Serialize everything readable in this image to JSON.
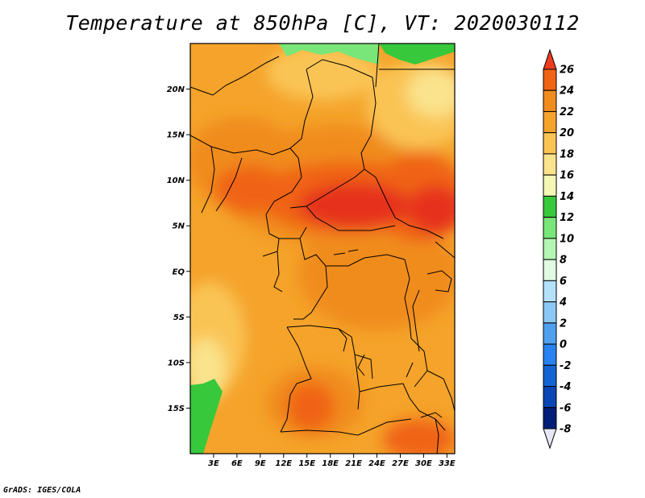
{
  "title": "Temperature at 850hPa [C], VT: 2020030112",
  "footer": "GrADS: IGES/COLA",
  "map": {
    "lon_range": [
      0,
      34
    ],
    "lat_range": [
      -20,
      25
    ],
    "lat_ticks": [
      {
        "value": 20,
        "label": "20N"
      },
      {
        "value": 15,
        "label": "15N"
      },
      {
        "value": 10,
        "label": "10N"
      },
      {
        "value": 5,
        "label": "5N"
      },
      {
        "value": 0,
        "label": "EQ"
      },
      {
        "value": -5,
        "label": "5S"
      },
      {
        "value": -10,
        "label": "10S"
      },
      {
        "value": -15,
        "label": "15S"
      }
    ],
    "lon_ticks": [
      {
        "value": 3,
        "label": "3E"
      },
      {
        "value": 6,
        "label": "6E"
      },
      {
        "value": 9,
        "label": "9E"
      },
      {
        "value": 12,
        "label": "12E"
      },
      {
        "value": 15,
        "label": "15E"
      },
      {
        "value": 18,
        "label": "18E"
      },
      {
        "value": 21,
        "label": "21E"
      },
      {
        "value": 24,
        "label": "24E"
      },
      {
        "value": 27,
        "label": "27E"
      },
      {
        "value": 30,
        "label": "30E"
      },
      {
        "value": 33,
        "label": "33E"
      }
    ]
  },
  "colorbar": {
    "levels": [
      "26",
      "24",
      "22",
      "20",
      "18",
      "16",
      "14",
      "12",
      "10",
      "8",
      "6",
      "4",
      "2",
      "0",
      "-2",
      "-4",
      "-6",
      "-8"
    ],
    "colors": [
      "#f03c1e",
      "#f06414",
      "#f08c1e",
      "#f5a32a",
      "#fac455",
      "#fae38c",
      "#f5f8b4",
      "#37c83c",
      "#78e678",
      "#b4f5b4",
      "#e1fae1",
      "#b4e1fa",
      "#8cc8f5",
      "#50a0f0",
      "#2882f0",
      "#1464d2",
      "#0a46b4",
      "#001e78",
      "#e6e6f5"
    ]
  }
}
